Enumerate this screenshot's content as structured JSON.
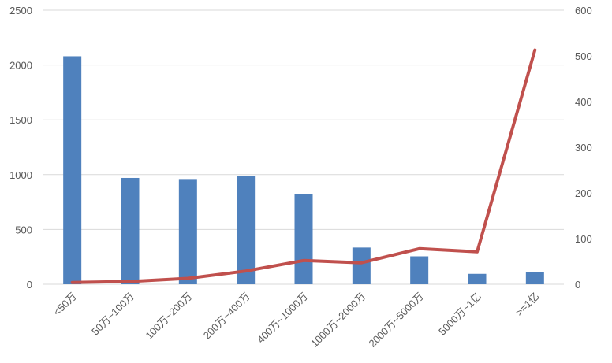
{
  "chart_data": {
    "type": "bar",
    "categories": [
      "<50万",
      "50万~100万",
      "100万~200万",
      "200万~400万",
      "400万~1000万",
      "1000万~2000万",
      "2000万~5000万",
      "5000万~1亿",
      ">=1亿"
    ],
    "series": [
      {
        "type": "bar",
        "axis": "left",
        "color": "#4f81bd",
        "values": [
          2080,
          970,
          960,
          990,
          825,
          335,
          255,
          95,
          110
        ]
      },
      {
        "type": "line",
        "axis": "right",
        "color": "#c0504d",
        "values": [
          4,
          6,
          13,
          29,
          52,
          47,
          78,
          71,
          513
        ]
      }
    ],
    "y_left": {
      "min": 0,
      "max": 2500,
      "ticks": [
        0,
        500,
        1000,
        1500,
        2000,
        2500
      ]
    },
    "y_right": {
      "min": 0,
      "max": 600,
      "ticks": [
        0,
        100,
        200,
        300,
        400,
        500,
        600
      ]
    },
    "grid": true,
    "legend": "none",
    "title": "",
    "xlabel": "",
    "ylabel": ""
  }
}
